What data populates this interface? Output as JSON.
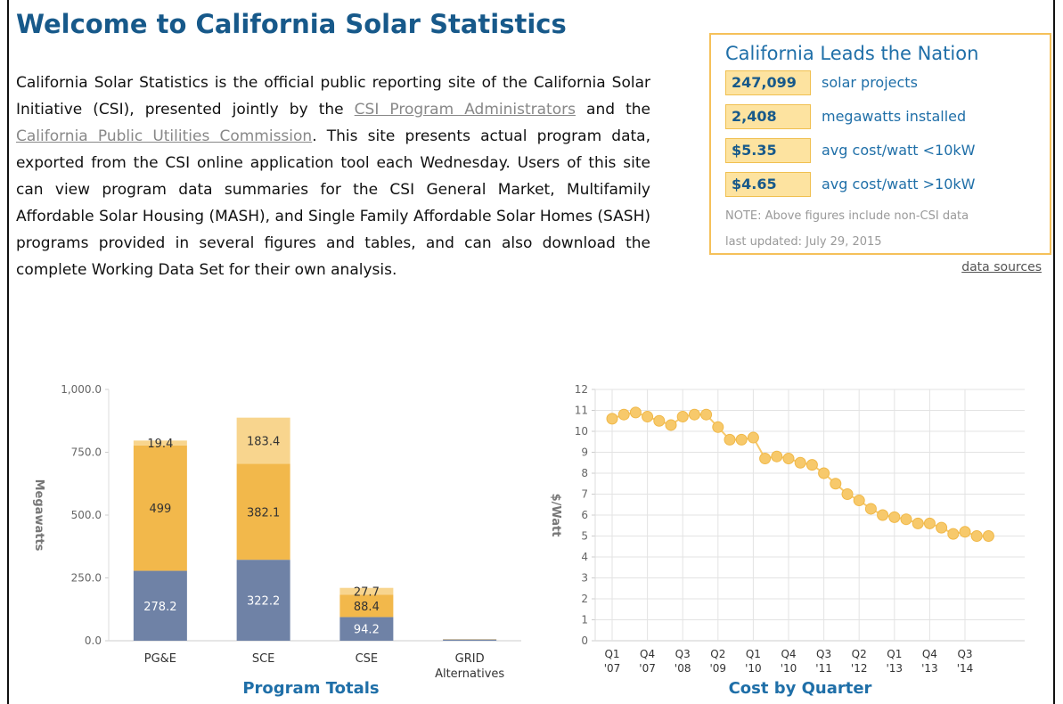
{
  "header": {
    "title": "Welcome to California Solar Statistics"
  },
  "intro": [
    "California Solar Statistics is the official public reporting site of the California Solar Initiative (CSI), presented jointly by the ",
    "CSI Program Administrators",
    " and the ",
    "California Public Utilities Commission",
    ". This site presents actual program data, exported from the CSI online application tool each Wednesday. Users of this site can view program data summaries for the CSI General Market, Multifamily Affordable Solar Housing (MASH), and Single Family Affordable Solar Homes (SASH) programs provided in several figures and tables, and can also download the complete Working Data Set for their own analysis."
  ],
  "stats": {
    "title": "California Leads the Nation",
    "rows": [
      {
        "value": "247,099",
        "label": "solar projects"
      },
      {
        "value": "2,408",
        "label": "megawatts installed"
      },
      {
        "value": "$5.35",
        "label": "avg cost/watt <10kW"
      },
      {
        "value": "$4.65",
        "label": "avg cost/watt >10kW"
      }
    ],
    "note": "NOTE: Above figures include non-CSI data",
    "updated": "last updated: July 29, 2015",
    "link": "data sources"
  },
  "chart_data": [
    {
      "type": "stacked-bar",
      "title": "Program Totals",
      "y_label": "Megawatts",
      "categories": [
        "PG&E",
        "SCE",
        "CSE",
        "GRID Alternatives"
      ],
      "series": [
        {
          "color": "#6f82a6",
          "label_color": "#ffffff",
          "values": [
            278.2,
            322.2,
            94.2,
            5
          ],
          "value_labels": [
            "278.2",
            "322.2",
            "94.2",
            null
          ]
        },
        {
          "color": "#f2b84b",
          "label_color": "#333333",
          "values": [
            499,
            382.1,
            88.4,
            1
          ],
          "value_labels": [
            "499",
            "382.1",
            "88.4",
            null
          ]
        },
        {
          "color": "#f8d58e",
          "label_color": "#333333",
          "values": [
            19.4,
            183.4,
            27.7,
            0.5
          ],
          "value_labels": [
            "19.4",
            "183.4",
            "27.7",
            null
          ]
        }
      ],
      "ylim": [
        0,
        1000
      ],
      "yticks": [
        {
          "value": 0,
          "label": "0.0"
        },
        {
          "value": 250,
          "label": "250.0"
        },
        {
          "value": 500,
          "label": "500.0"
        },
        {
          "value": 750,
          "label": "750.0"
        },
        {
          "value": 1000,
          "label": "1,000.0"
        }
      ],
      "grid": false
    },
    {
      "type": "line",
      "title": "Cost by Quarter",
      "y_label": "$/Watt",
      "color": "#f7c96b",
      "categories": [
        "Q1 '07",
        null,
        null,
        "Q4 '07",
        null,
        null,
        "Q3 '08",
        null,
        null,
        "Q2 '09",
        null,
        null,
        "Q1 '10",
        null,
        null,
        "Q4 '10",
        null,
        null,
        "Q3 '11",
        null,
        null,
        "Q2 '12",
        null,
        null,
        "Q1 '13",
        null,
        null,
        "Q4 '13",
        null,
        null,
        "Q3 '14",
        null,
        null
      ],
      "values": [
        10.6,
        10.8,
        10.9,
        10.7,
        10.5,
        10.3,
        10.7,
        10.8,
        10.8,
        10.2,
        9.6,
        9.6,
        9.7,
        8.7,
        8.8,
        8.7,
        8.5,
        8.4,
        8.0,
        7.5,
        7.0,
        6.7,
        6.3,
        6.0,
        5.9,
        5.8,
        5.6,
        5.6,
        5.4,
        5.1,
        5.2,
        5.0,
        5.0
      ],
      "ylim": [
        0,
        12
      ],
      "yticks": [
        0,
        1,
        2,
        3,
        4,
        5,
        6,
        7,
        8,
        9,
        10,
        11,
        12
      ],
      "grid": true
    }
  ]
}
